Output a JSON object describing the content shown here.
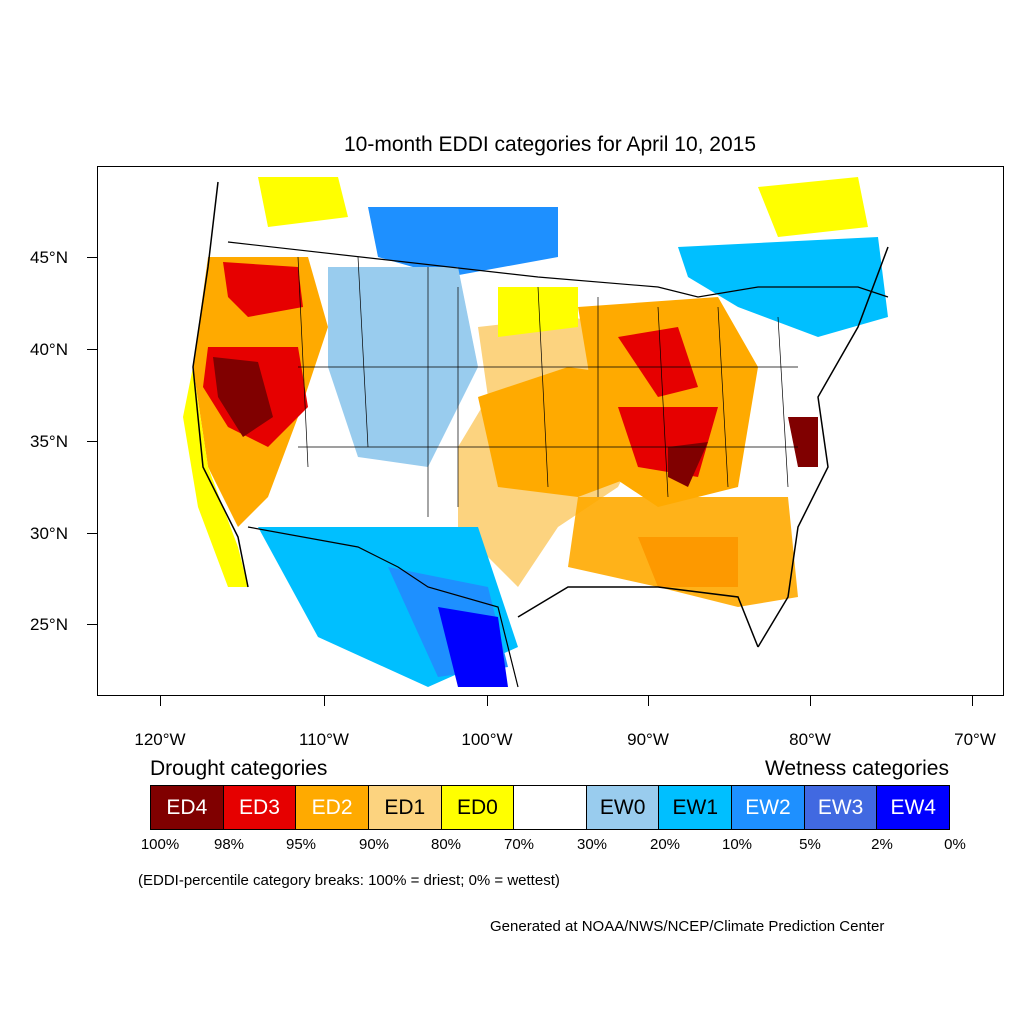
{
  "title": "10-month EDDI categories for April 10, 2015",
  "lat_labels": [
    "45°N",
    "40°N",
    "35°N",
    "30°N",
    "25°N"
  ],
  "lon_labels": [
    "120°W",
    "110°W",
    "100°W",
    "90°W",
    "80°W",
    "70°W"
  ],
  "legend": {
    "drought_title": "Drought categories",
    "wetness_title": "Wetness categories",
    "categories": [
      {
        "label": "ED4",
        "color": "#800000",
        "text_color": "#ffffff"
      },
      {
        "label": "ED3",
        "color": "#e60000",
        "text_color": "#ffffff"
      },
      {
        "label": "ED2",
        "color": "#ffaa00",
        "text_color": "#ffffff"
      },
      {
        "label": "ED1",
        "color": "#fcd37f",
        "text_color": "#000000"
      },
      {
        "label": "ED0",
        "color": "#ffff00",
        "text_color": "#000000"
      },
      {
        "label": "",
        "color": "#ffffff",
        "text_color": "#000000"
      },
      {
        "label": "EW0",
        "color": "#99ccee",
        "text_color": "#000000"
      },
      {
        "label": "EW1",
        "color": "#00bfff",
        "text_color": "#000000"
      },
      {
        "label": "EW2",
        "color": "#1e90ff",
        "text_color": "#ffffff"
      },
      {
        "label": "EW3",
        "color": "#4169e1",
        "text_color": "#ffffff"
      },
      {
        "label": "EW4",
        "color": "#0000ff",
        "text_color": "#ffffff"
      }
    ],
    "percentiles": [
      "100%",
      "98%",
      "95%",
      "90%",
      "80%",
      "70%",
      "30%",
      "20%",
      "10%",
      "5%",
      "2%",
      "0%"
    ]
  },
  "note": "(EDDI-percentile category breaks: 100% = driest; 0% = wettest)",
  "credit": "Generated at NOAA/NWS/NCEP/Climate Prediction Center"
}
